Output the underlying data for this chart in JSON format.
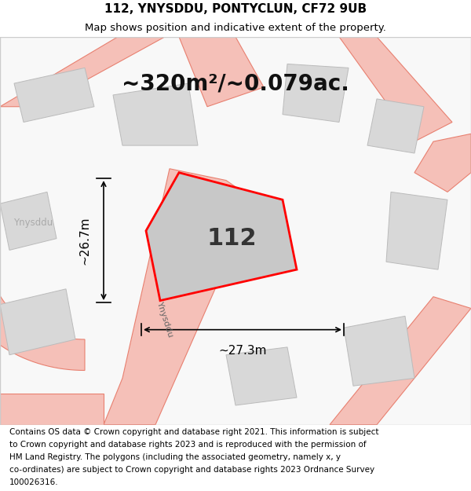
{
  "title_line1": "112, YNYSDDU, PONTYCLUN, CF72 9UB",
  "title_line2": "Map shows position and indicative extent of the property.",
  "area_label": "~320m²/~0.079ac.",
  "plot_number": "112",
  "dim_vertical": "~26.7m",
  "dim_horizontal": "~27.3m",
  "street_label": "Ynysddu",
  "locality_label": "Ynysddu",
  "footer_lines": [
    "Contains OS data © Crown copyright and database right 2021. This information is subject",
    "to Crown copyright and database rights 2023 and is reproduced with the permission of",
    "HM Land Registry. The polygons (including the associated geometry, namely x, y",
    "co-ordinates) are subject to Crown copyright and database rights 2023 Ordnance Survey",
    "100026316."
  ],
  "map_bg": "#ffffff",
  "road_color": "#f5c0b8",
  "road_edge_color": "#e88070",
  "building_color": "#d8d8d8",
  "building_edge_color": "#bbbbbb",
  "title_fontsize": 11,
  "subtitle_fontsize": 9.5,
  "area_fontsize": 20,
  "number_fontsize": 22,
  "dim_fontsize": 11,
  "footer_fontsize": 7.5
}
